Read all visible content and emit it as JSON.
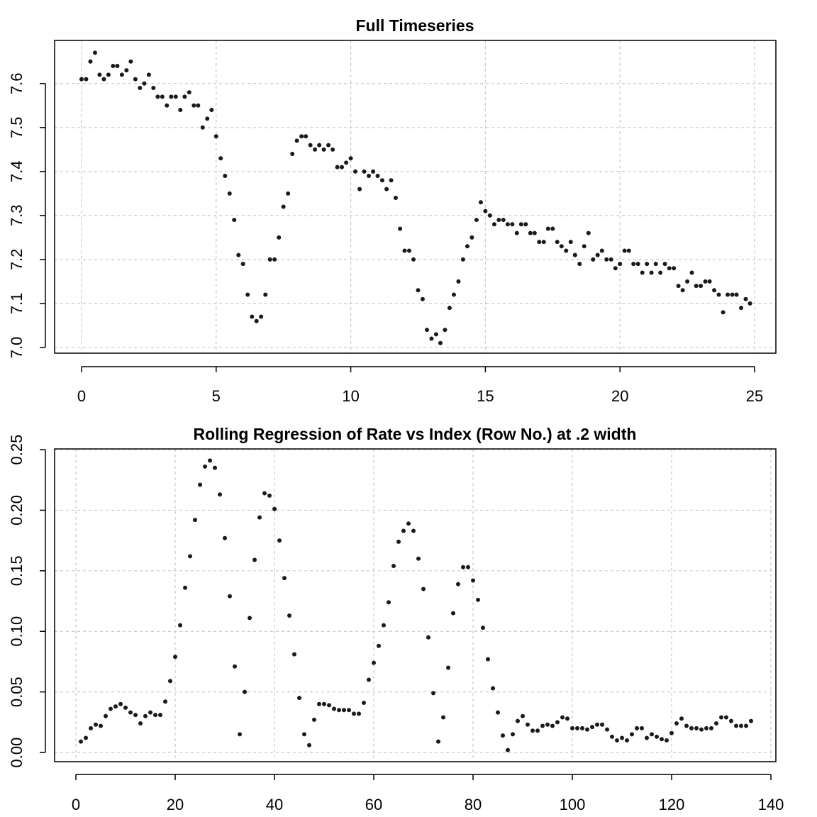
{
  "chart_data": [
    {
      "type": "scatter",
      "title": "Full Timeseries",
      "color": "#1a1a1a",
      "grid": true,
      "xlim": [
        -1.0,
        25.79
      ],
      "ylim": [
        6.987,
        7.698
      ],
      "xticks": [
        0,
        5,
        10,
        15,
        20,
        25
      ],
      "yticks": [
        {
          "value": 7,
          "label": "7.0"
        },
        7.1,
        7.2,
        7.3,
        7.4,
        7.5,
        7.6
      ],
      "x": [
        0,
        0.17,
        0.33,
        0.5,
        0.67,
        0.83,
        1,
        1.17,
        1.33,
        1.5,
        1.67,
        1.83,
        2,
        2.17,
        2.33,
        2.5,
        2.67,
        2.83,
        3,
        3.17,
        3.33,
        3.5,
        3.67,
        3.83,
        4,
        4.17,
        4.33,
        4.5,
        4.67,
        4.83,
        5,
        5.17,
        5.33,
        5.5,
        5.67,
        5.83,
        6,
        6.17,
        6.33,
        6.5,
        6.67,
        6.83,
        7,
        7.17,
        7.33,
        7.5,
        7.67,
        7.83,
        8,
        8.17,
        8.33,
        8.5,
        8.67,
        8.83,
        9,
        9.17,
        9.33,
        9.5,
        9.67,
        9.83,
        10,
        10.17,
        10.33,
        10.5,
        10.67,
        10.83,
        11,
        11.17,
        11.33,
        11.5,
        11.67,
        11.83,
        12,
        12.17,
        12.33,
        12.5,
        12.67,
        12.83,
        13,
        13.17,
        13.33,
        13.5,
        13.67,
        13.83,
        14,
        14.17,
        14.33,
        14.5,
        14.67,
        14.83,
        15,
        15.17,
        15.33,
        15.5,
        15.67,
        15.83,
        16,
        16.17,
        16.33,
        16.5,
        16.67,
        16.83,
        17,
        17.17,
        17.33,
        17.5,
        17.67,
        17.83,
        18,
        18.17,
        18.33,
        18.5,
        18.67,
        18.83,
        19,
        19.17,
        19.33,
        19.5,
        19.67,
        19.83,
        20,
        20.17,
        20.33,
        20.5,
        20.67,
        20.83,
        21,
        21.17,
        21.33,
        21.5,
        21.67,
        21.83,
        22,
        22.17,
        22.33,
        22.5,
        22.67,
        22.83,
        23,
        23.17,
        23.33,
        23.5,
        23.67,
        23.83,
        24,
        24.17,
        24.33,
        24.5,
        24.67,
        24.83
      ],
      "values": [
        7.61,
        7.61,
        7.65,
        7.67,
        7.62,
        7.61,
        7.62,
        7.64,
        7.64,
        7.62,
        7.63,
        7.65,
        7.61,
        7.59,
        7.6,
        7.62,
        7.59,
        7.57,
        7.57,
        7.55,
        7.57,
        7.57,
        7.54,
        7.57,
        7.58,
        7.55,
        7.55,
        7.5,
        7.52,
        7.54,
        7.48,
        7.43,
        7.39,
        7.35,
        7.29,
        7.21,
        7.19,
        7.12,
        7.07,
        7.06,
        7.07,
        7.12,
        7.2,
        7.2,
        7.25,
        7.32,
        7.35,
        7.44,
        7.47,
        7.48,
        7.48,
        7.46,
        7.45,
        7.46,
        7.45,
        7.46,
        7.45,
        7.41,
        7.41,
        7.42,
        7.43,
        7.4,
        7.36,
        7.4,
        7.39,
        7.4,
        7.39,
        7.38,
        7.36,
        7.38,
        7.34,
        7.27,
        7.22,
        7.22,
        7.2,
        7.13,
        7.11,
        7.04,
        7.02,
        7.03,
        7.01,
        7.04,
        7.09,
        7.12,
        7.15,
        7.2,
        7.23,
        7.25,
        7.29,
        7.33,
        7.31,
        7.3,
        7.28,
        7.29,
        7.29,
        7.28,
        7.28,
        7.26,
        7.28,
        7.28,
        7.26,
        7.26,
        7.24,
        7.24,
        7.27,
        7.27,
        7.24,
        7.23,
        7.22,
        7.24,
        7.21,
        7.19,
        7.23,
        7.26,
        7.2,
        7.21,
        7.22,
        7.2,
        7.2,
        7.18,
        7.19,
        7.22,
        7.22,
        7.19,
        7.19,
        7.17,
        7.19,
        7.17,
        7.19,
        7.17,
        7.19,
        7.18,
        7.18,
        7.14,
        7.13,
        7.15,
        7.17,
        7.14,
        7.14,
        7.15,
        7.15,
        7.13,
        7.12,
        7.08,
        7.12,
        7.12,
        7.12,
        7.09,
        7.11,
        7.1
      ]
    },
    {
      "type": "scatter",
      "title": "Rolling Regression of Rate vs Index (Row No.) at .2 width",
      "color": "#1a1a1a",
      "grid": true,
      "xlim": [
        -4.29,
        141.0
      ],
      "ylim": [
        -0.0076,
        0.2506
      ],
      "xticks": [
        0,
        20,
        40,
        60,
        80,
        100,
        120,
        140
      ],
      "yticks": [
        {
          "value": 0,
          "label": "0.00"
        },
        0.05,
        {
          "value": 0.1,
          "label": "0.10"
        },
        0.15,
        {
          "value": 0.2,
          "label": "0.20"
        },
        0.25
      ],
      "x": [
        1,
        2,
        3,
        4,
        5,
        6,
        7,
        8,
        9,
        10,
        11,
        12,
        13,
        14,
        15,
        16,
        17,
        18,
        19,
        20,
        21,
        22,
        23,
        24,
        25,
        26,
        27,
        28,
        29,
        30,
        31,
        32,
        33,
        34,
        35,
        36,
        37,
        38,
        39,
        40,
        41,
        42,
        43,
        44,
        45,
        46,
        47,
        48,
        49,
        50,
        51,
        52,
        53,
        54,
        55,
        56,
        57,
        58,
        59,
        60,
        61,
        62,
        63,
        64,
        65,
        66,
        67,
        68,
        69,
        70,
        71,
        72,
        73,
        74,
        75,
        76,
        77,
        78,
        79,
        80,
        81,
        82,
        83,
        84,
        85,
        86,
        87,
        88,
        89,
        90,
        91,
        92,
        93,
        94,
        95,
        96,
        97,
        98,
        99,
        100,
        101,
        102,
        103,
        104,
        105,
        106,
        107,
        108,
        109,
        110,
        111,
        112,
        113,
        114,
        115,
        116,
        117,
        118,
        119,
        120,
        121,
        122,
        123,
        124,
        125,
        126,
        127,
        128,
        129,
        130,
        131,
        132,
        133,
        134,
        135,
        136
      ],
      "values": [
        0.009,
        0.012,
        0.02,
        0.023,
        0.022,
        0.03,
        0.036,
        0.038,
        0.04,
        0.037,
        0.033,
        0.031,
        0.024,
        0.03,
        0.033,
        0.031,
        0.031,
        0.042,
        0.059,
        0.079,
        0.105,
        0.136,
        0.162,
        0.192,
        0.221,
        0.236,
        0.241,
        0.235,
        0.213,
        0.177,
        0.129,
        0.071,
        0.015,
        0.05,
        0.111,
        0.159,
        0.194,
        0.214,
        0.212,
        0.201,
        0.175,
        0.144,
        0.113,
        0.081,
        0.045,
        0.015,
        0.006,
        0.027,
        0.04,
        0.04,
        0.039,
        0.036,
        0.035,
        0.035,
        0.035,
        0.032,
        0.032,
        0.041,
        0.06,
        0.074,
        0.088,
        0.105,
        0.124,
        0.154,
        0.174,
        0.183,
        0.189,
        0.183,
        0.16,
        0.135,
        0.095,
        0.049,
        0.009,
        0.029,
        0.07,
        0.115,
        0.139,
        0.153,
        0.153,
        0.142,
        0.126,
        0.103,
        0.077,
        0.053,
        0.033,
        0.014,
        0.002,
        0.015,
        0.026,
        0.03,
        0.023,
        0.018,
        0.018,
        0.022,
        0.023,
        0.022,
        0.025,
        0.029,
        0.028,
        0.02,
        0.02,
        0.02,
        0.019,
        0.021,
        0.023,
        0.023,
        0.019,
        0.013,
        0.01,
        0.012,
        0.01,
        0.015,
        0.02,
        0.02,
        0.012,
        0.015,
        0.013,
        0.011,
        0.01,
        0.016,
        0.024,
        0.028,
        0.022,
        0.02,
        0.02,
        0.019,
        0.02,
        0.02,
        0.024,
        0.029,
        0.029,
        0.026,
        0.022,
        0.022,
        0.022,
        0.026
      ]
    }
  ]
}
